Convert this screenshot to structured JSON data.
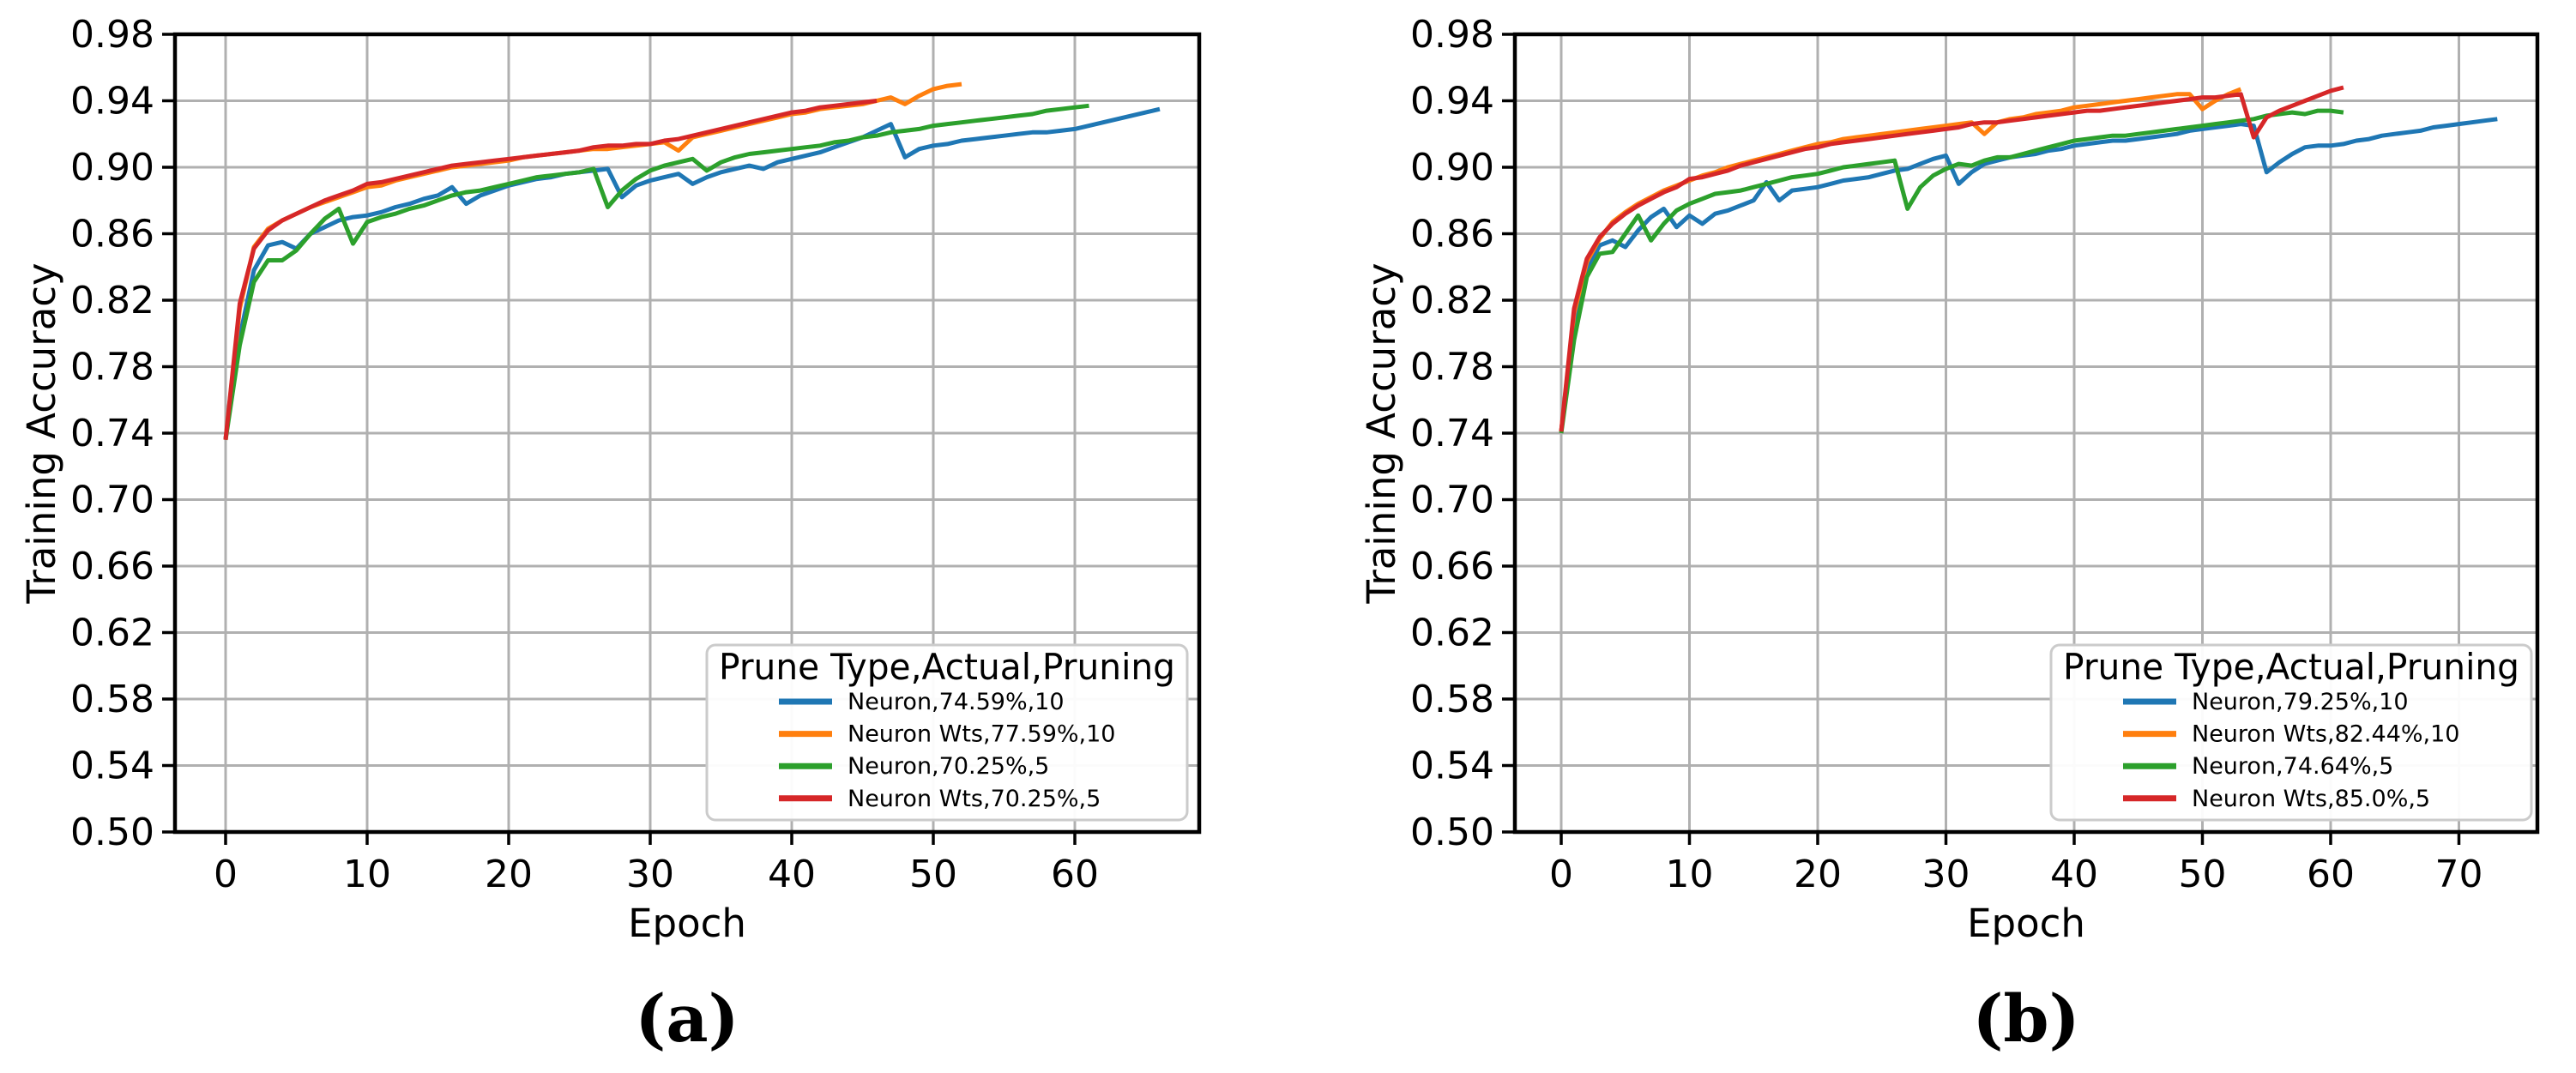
{
  "figure": {
    "background": "#ffffff",
    "captions": {
      "a": "(a)",
      "b": "(b)"
    }
  },
  "style": {
    "grid_color": "#b0b0b0",
    "spine_color": "#000000",
    "text_color": "#000000",
    "legend_border_color": "#cbcbcb",
    "legend_fill": "#ffffff"
  },
  "chart_data": [
    {
      "id": "a",
      "type": "line",
      "caption": "(a)",
      "xlabel": "Epoch",
      "ylabel": "Training Accuracy",
      "xlim": [
        -3.6,
        68.8
      ],
      "ylim": [
        0.5,
        0.98
      ],
      "grid": true,
      "x_ticks": [
        0,
        10,
        20,
        30,
        40,
        50,
        60
      ],
      "y_tick_labels": [
        "0.50",
        "0.54",
        "0.58",
        "0.62",
        "0.66",
        "0.70",
        "0.74",
        "0.78",
        "0.82",
        "0.86",
        "0.90",
        "0.94",
        "0.98"
      ],
      "legend": {
        "title": "Prune Type,Actual,Pruning",
        "position": "lower right"
      },
      "series": [
        {
          "name": "Neuron,74.59%,10",
          "color": "#1f77b4",
          "values": [
            0.737,
            0.798,
            0.838,
            0.853,
            0.855,
            0.851,
            0.86,
            0.864,
            0.868,
            0.87,
            0.871,
            0.873,
            0.876,
            0.878,
            0.881,
            0.883,
            0.888,
            0.878,
            0.883,
            0.886,
            0.889,
            0.891,
            0.893,
            0.894,
            0.896,
            0.897,
            0.898,
            0.899,
            0.882,
            0.889,
            0.892,
            0.894,
            0.896,
            0.89,
            0.894,
            0.897,
            0.899,
            0.901,
            0.899,
            0.903,
            0.905,
            0.907,
            0.909,
            0.912,
            0.915,
            0.918,
            0.922,
            0.926,
            0.906,
            0.911,
            0.913,
            0.914,
            0.916,
            0.917,
            0.918,
            0.919,
            0.92,
            0.921,
            0.921,
            0.922,
            0.923,
            0.925,
            0.927,
            0.929,
            0.931,
            0.933,
            0.935
          ]
        },
        {
          "name": "Neuron Wts,77.59%,10",
          "color": "#ff7f0e",
          "values": [
            0.736,
            0.815,
            0.852,
            0.863,
            0.868,
            0.872,
            0.876,
            0.879,
            0.882,
            0.885,
            0.888,
            0.889,
            0.892,
            0.894,
            0.896,
            0.898,
            0.9,
            0.901,
            0.902,
            0.903,
            0.904,
            0.906,
            0.907,
            0.908,
            0.909,
            0.91,
            0.911,
            0.911,
            0.912,
            0.913,
            0.914,
            0.915,
            0.91,
            0.918,
            0.92,
            0.922,
            0.924,
            0.926,
            0.928,
            0.93,
            0.932,
            0.933,
            0.935,
            0.936,
            0.937,
            0.938,
            0.94,
            0.942,
            0.938,
            0.943,
            0.947,
            0.949,
            0.95
          ]
        },
        {
          "name": "Neuron,70.25%,5",
          "color": "#2ca02c",
          "values": [
            0.736,
            0.793,
            0.831,
            0.844,
            0.844,
            0.85,
            0.86,
            0.869,
            0.875,
            0.854,
            0.867,
            0.87,
            0.872,
            0.875,
            0.877,
            0.88,
            0.883,
            0.885,
            0.886,
            0.888,
            0.89,
            0.892,
            0.894,
            0.895,
            0.896,
            0.897,
            0.899,
            0.876,
            0.886,
            0.893,
            0.898,
            0.901,
            0.903,
            0.905,
            0.898,
            0.903,
            0.906,
            0.908,
            0.909,
            0.91,
            0.911,
            0.912,
            0.913,
            0.915,
            0.916,
            0.918,
            0.919,
            0.921,
            0.922,
            0.923,
            0.925,
            0.926,
            0.927,
            0.928,
            0.929,
            0.93,
            0.931,
            0.932,
            0.934,
            0.935,
            0.936,
            0.937
          ]
        },
        {
          "name": "Neuron Wts,70.25%,5",
          "color": "#d62728",
          "values": [
            0.736,
            0.818,
            0.851,
            0.862,
            0.868,
            0.872,
            0.876,
            0.88,
            0.883,
            0.886,
            0.89,
            0.891,
            0.893,
            0.895,
            0.897,
            0.899,
            0.901,
            0.902,
            0.903,
            0.904,
            0.905,
            0.906,
            0.907,
            0.908,
            0.909,
            0.91,
            0.912,
            0.913,
            0.913,
            0.914,
            0.914,
            0.916,
            0.917,
            0.919,
            0.921,
            0.923,
            0.925,
            0.927,
            0.929,
            0.931,
            0.933,
            0.934,
            0.936,
            0.937,
            0.938,
            0.939,
            0.94
          ]
        }
      ]
    },
    {
      "id": "b",
      "type": "line",
      "caption": "(b)",
      "xlabel": "Epoch",
      "ylabel": "Training Accuracy",
      "xlim": [
        -3.8,
        76.1
      ],
      "ylim": [
        0.5,
        0.98
      ],
      "grid": true,
      "x_ticks": [
        0,
        10,
        20,
        30,
        40,
        50,
        60,
        70
      ],
      "y_tick_labels": [
        "0.50",
        "0.54",
        "0.58",
        "0.62",
        "0.66",
        "0.70",
        "0.74",
        "0.78",
        "0.82",
        "0.86",
        "0.90",
        "0.94",
        "0.98"
      ],
      "legend": {
        "title": "Prune Type,Actual,Pruning",
        "position": "lower right"
      },
      "series": [
        {
          "name": "Neuron,79.25%,10",
          "color": "#1f77b4",
          "values": [
            0.741,
            0.801,
            0.838,
            0.853,
            0.856,
            0.852,
            0.862,
            0.87,
            0.875,
            0.864,
            0.871,
            0.866,
            0.872,
            0.874,
            0.877,
            0.88,
            0.891,
            0.88,
            0.886,
            0.887,
            0.888,
            0.89,
            0.892,
            0.893,
            0.894,
            0.896,
            0.898,
            0.899,
            0.902,
            0.905,
            0.907,
            0.89,
            0.897,
            0.902,
            0.904,
            0.906,
            0.907,
            0.908,
            0.91,
            0.911,
            0.913,
            0.914,
            0.915,
            0.916,
            0.916,
            0.917,
            0.918,
            0.919,
            0.92,
            0.922,
            0.923,
            0.924,
            0.925,
            0.926,
            0.925,
            0.897,
            0.903,
            0.908,
            0.912,
            0.913,
            0.913,
            0.914,
            0.916,
            0.917,
            0.919,
            0.92,
            0.921,
            0.922,
            0.924,
            0.925,
            0.926,
            0.927,
            0.928,
            0.929
          ]
        },
        {
          "name": "Neuron Wts,82.44%,10",
          "color": "#ff7f0e",
          "values": [
            0.741,
            0.812,
            0.843,
            0.857,
            0.867,
            0.873,
            0.878,
            0.882,
            0.886,
            0.889,
            0.892,
            0.895,
            0.897,
            0.9,
            0.902,
            0.904,
            0.906,
            0.908,
            0.91,
            0.912,
            0.914,
            0.915,
            0.917,
            0.918,
            0.919,
            0.92,
            0.921,
            0.922,
            0.923,
            0.924,
            0.925,
            0.926,
            0.927,
            0.92,
            0.927,
            0.929,
            0.93,
            0.932,
            0.933,
            0.934,
            0.936,
            0.937,
            0.938,
            0.939,
            0.94,
            0.941,
            0.942,
            0.943,
            0.944,
            0.944,
            0.935,
            0.94,
            0.944,
            0.947
          ]
        },
        {
          "name": "Neuron,74.64%,5",
          "color": "#2ca02c",
          "values": [
            0.74,
            0.796,
            0.834,
            0.848,
            0.849,
            0.86,
            0.871,
            0.856,
            0.866,
            0.874,
            0.878,
            0.881,
            0.884,
            0.885,
            0.886,
            0.888,
            0.89,
            0.892,
            0.894,
            0.895,
            0.896,
            0.898,
            0.9,
            0.901,
            0.902,
            0.903,
            0.904,
            0.875,
            0.888,
            0.895,
            0.899,
            0.902,
            0.901,
            0.904,
            0.906,
            0.906,
            0.908,
            0.91,
            0.912,
            0.914,
            0.916,
            0.917,
            0.918,
            0.919,
            0.919,
            0.92,
            0.921,
            0.922,
            0.923,
            0.924,
            0.925,
            0.926,
            0.927,
            0.928,
            0.929,
            0.931,
            0.932,
            0.933,
            0.932,
            0.934,
            0.934,
            0.933
          ]
        },
        {
          "name": "Neuron Wts,85.0%,5",
          "color": "#d62728",
          "values": [
            0.741,
            0.815,
            0.845,
            0.858,
            0.866,
            0.872,
            0.877,
            0.881,
            0.885,
            0.888,
            0.893,
            0.894,
            0.896,
            0.898,
            0.901,
            0.903,
            0.905,
            0.907,
            0.909,
            0.911,
            0.912,
            0.914,
            0.915,
            0.916,
            0.917,
            0.918,
            0.919,
            0.92,
            0.921,
            0.922,
            0.923,
            0.924,
            0.926,
            0.927,
            0.927,
            0.928,
            0.929,
            0.93,
            0.931,
            0.932,
            0.933,
            0.934,
            0.934,
            0.935,
            0.936,
            0.937,
            0.938,
            0.939,
            0.94,
            0.941,
            0.942,
            0.942,
            0.943,
            0.944,
            0.918,
            0.93,
            0.934,
            0.937,
            0.94,
            0.943,
            0.946,
            0.948
          ]
        }
      ]
    }
  ]
}
